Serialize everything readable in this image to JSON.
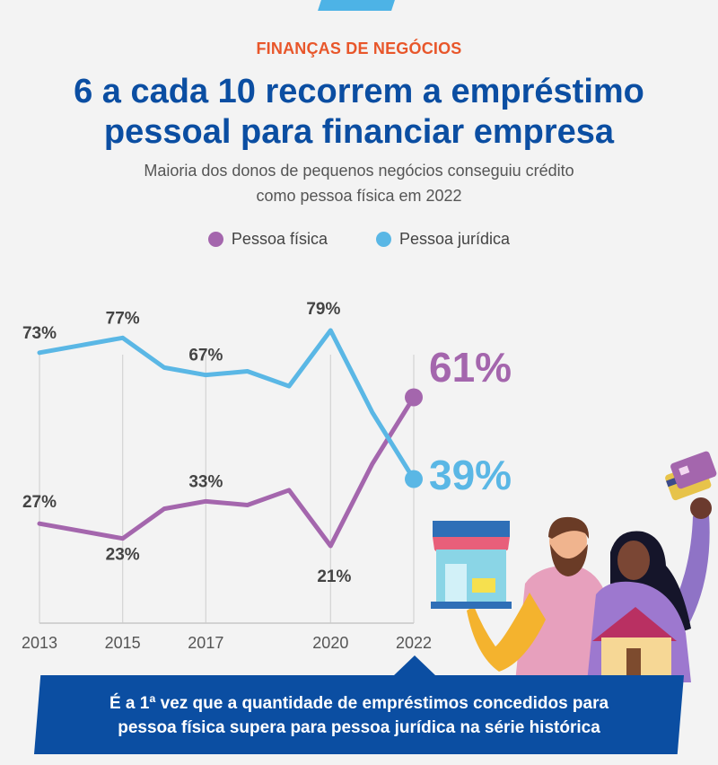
{
  "header": {
    "kicker": "FINANÇAS DE NEGÓCIOS",
    "title_line1": "6 a cada 10 recorrem a empréstimo",
    "title_line2": "pessoal para financiar empresa",
    "subtitle_line1": "Maioria dos donos de pequenos negócios conseguiu crédito",
    "subtitle_line2": "como pessoa física em 2022"
  },
  "colors": {
    "pf": "#a466ad",
    "pj": "#5ab7e5",
    "title": "#0b4ea2",
    "kicker": "#e8562a"
  },
  "chart_data": {
    "type": "line",
    "x": [
      2013,
      2014,
      2015,
      2016,
      2017,
      2018,
      2019,
      2020,
      2021,
      2022
    ],
    "tick_labels": [
      "2013",
      "2015",
      "2017",
      "2020",
      "2022"
    ],
    "series": [
      {
        "name": "Pessoa física",
        "color": "#a466ad",
        "values": [
          27,
          25,
          23,
          31,
          33,
          32,
          36,
          21,
          43,
          61
        ],
        "labels": {
          "2013": "27%",
          "2015": "23%",
          "2017": "33%",
          "2020": "21%"
        },
        "final_label": "61%"
      },
      {
        "name": "Pessoa jurídica",
        "color": "#5ab7e5",
        "values": [
          73,
          75,
          77,
          69,
          67,
          68,
          64,
          79,
          57,
          39
        ],
        "labels": {
          "2013": "73%",
          "2015": "77%",
          "2017": "67%",
          "2020": "79%"
        },
        "final_label": "39%"
      }
    ],
    "ylim": [
      0,
      100
    ],
    "grid": "vertical lines at labelled years",
    "legend": "top-center"
  },
  "footer": {
    "banner_line1": "É a 1ª vez que a quantidade de empréstimos concedidos para",
    "banner_line2": "pessoa física supera para pessoa jurídica na série histórica"
  }
}
